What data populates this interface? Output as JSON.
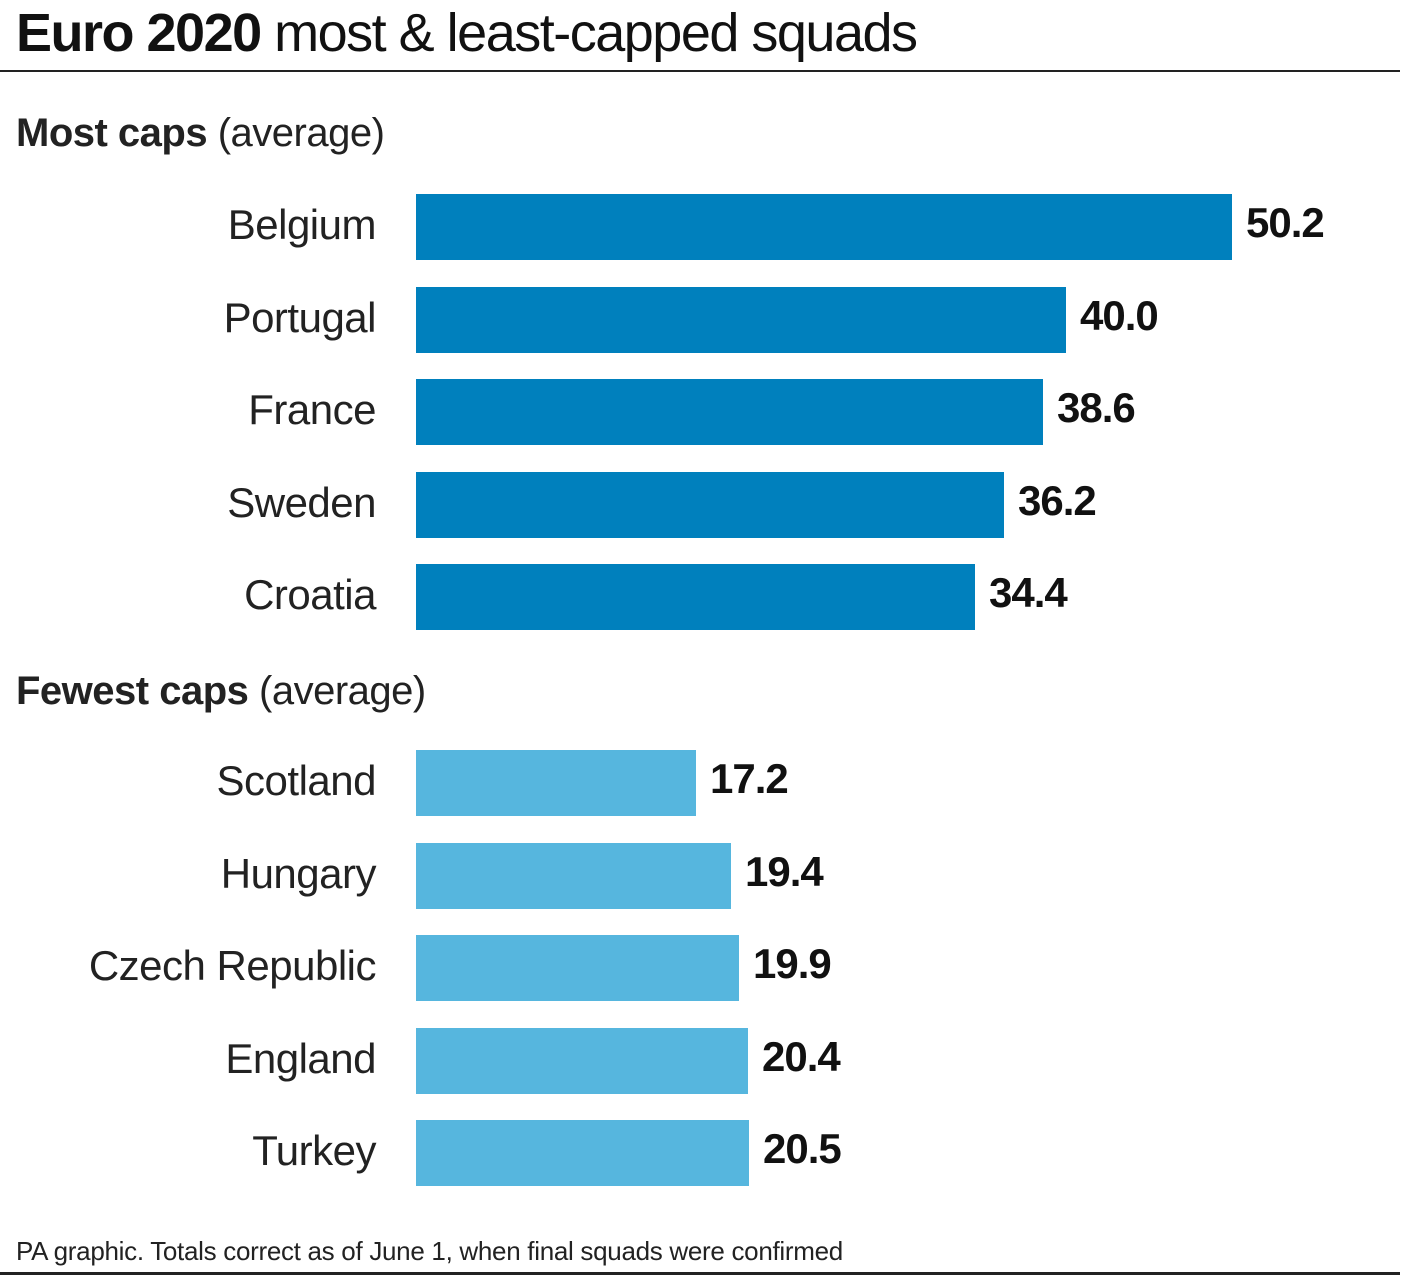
{
  "title": {
    "bold": "Euro 2020",
    "rest": " most & least-capped squads"
  },
  "footer": "PA graphic. Totals correct as of June 1, when final squads were confirmed",
  "colors": {
    "most": "#0080bd",
    "fewest": "#56b6de"
  },
  "chart_data": [
    {
      "type": "bar",
      "orientation": "horizontal",
      "title_bold": "Most caps",
      "title_rest": " (average)",
      "categories": [
        "Belgium",
        "Portugal",
        "France",
        "Sweden",
        "Croatia"
      ],
      "values": [
        50.2,
        40.0,
        38.6,
        36.2,
        34.4
      ],
      "value_labels": [
        "50.2",
        "40.0",
        "38.6",
        "36.2",
        "34.4"
      ],
      "color": "#0080bd"
    },
    {
      "type": "bar",
      "orientation": "horizontal",
      "title_bold": "Fewest caps",
      "title_rest": " (average)",
      "categories": [
        "Scotland",
        "Hungary",
        "Czech Republic",
        "England",
        "Turkey"
      ],
      "values": [
        17.2,
        19.4,
        19.9,
        20.4,
        20.5
      ],
      "value_labels": [
        "17.2",
        "19.4",
        "19.9",
        "20.4",
        "20.5"
      ],
      "color": "#56b6de"
    }
  ]
}
